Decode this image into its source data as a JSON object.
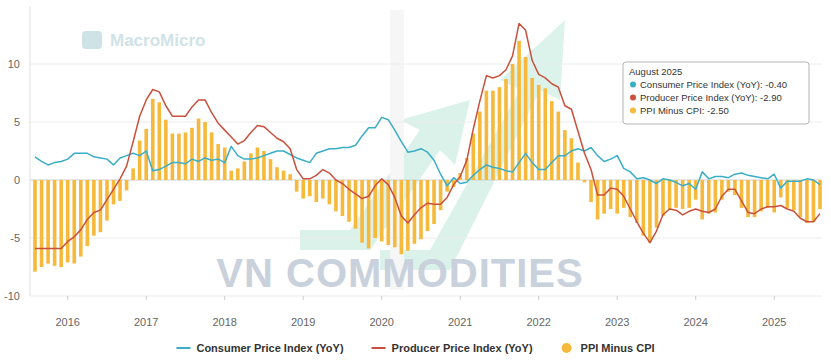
{
  "chart_data": {
    "type": "line",
    "categories": [
      null,
      null,
      null,
      null,
      null,
      "2016",
      null,
      null,
      null,
      null,
      null,
      null,
      null,
      null,
      null,
      null,
      null,
      "2017",
      null,
      null,
      null,
      null,
      null,
      null,
      null,
      null,
      null,
      null,
      null,
      "2018",
      null,
      null,
      null,
      null,
      null,
      null,
      null,
      null,
      null,
      null,
      null,
      "2019",
      null,
      null,
      null,
      null,
      null,
      null,
      null,
      null,
      null,
      null,
      null,
      "2020",
      null,
      null,
      null,
      null,
      null,
      null,
      null,
      null,
      null,
      null,
      null,
      "2021",
      null,
      null,
      null,
      null,
      null,
      null,
      null,
      null,
      null,
      null,
      null,
      "2022",
      null,
      null,
      null,
      null,
      null,
      null,
      null,
      null,
      null,
      null,
      null,
      "2023",
      null,
      null,
      null,
      null,
      null,
      null,
      null,
      null,
      null,
      null,
      null,
      "2024",
      null,
      null,
      null,
      null,
      null,
      null,
      null,
      null,
      null,
      null,
      null,
      "2025",
      null,
      null,
      null,
      null,
      null,
      null,
      null
    ],
    "series": [
      {
        "name": "Consumer Price Index (YoY)",
        "type": "line",
        "color": "#3aaec6",
        "values": [
          2.0,
          1.6,
          1.3,
          1.5,
          1.6,
          1.8,
          2.3,
          2.3,
          2.3,
          2.0,
          1.9,
          1.8,
          1.3,
          1.9,
          2.1,
          2.3,
          2.1,
          2.5,
          0.8,
          0.9,
          1.2,
          1.5,
          1.5,
          1.4,
          1.8,
          1.6,
          1.9,
          1.7,
          1.8,
          1.5,
          2.9,
          2.1,
          1.8,
          1.8,
          1.9,
          2.1,
          2.3,
          2.5,
          2.5,
          2.2,
          1.9,
          1.7,
          1.5,
          2.3,
          2.5,
          2.7,
          2.7,
          2.8,
          2.8,
          3.0,
          3.8,
          4.5,
          4.5,
          5.4,
          5.2,
          4.3,
          3.3,
          2.4,
          2.5,
          2.7,
          2.4,
          1.7,
          0.5,
          -0.5,
          0.2,
          -0.3,
          -0.2,
          0.4,
          0.9,
          1.3,
          1.1,
          1.0,
          0.8,
          0.7,
          1.5,
          2.3,
          1.5,
          0.9,
          0.9,
          1.5,
          2.1,
          2.1,
          2.5,
          2.7,
          2.5,
          2.8,
          2.1,
          1.6,
          1.8,
          2.1,
          1.0,
          0.7,
          0.1,
          0.2,
          0.0,
          -0.3,
          0.1,
          0.0,
          -0.2,
          -0.5,
          -0.3,
          -0.8,
          0.7,
          0.1,
          0.3,
          0.3,
          0.2,
          0.5,
          0.6,
          0.4,
          0.3,
          0.2,
          0.1,
          0.5,
          -0.7,
          -0.1,
          -0.1,
          -0.1,
          0.1,
          0.0,
          -0.4
        ]
      },
      {
        "name": "Producer Price Index (YoY)",
        "type": "line",
        "color": "#c9503d",
        "values": [
          -5.9,
          -5.9,
          -5.9,
          -5.9,
          -5.9,
          -5.3,
          -4.9,
          -4.3,
          -3.4,
          -2.8,
          -2.6,
          -1.7,
          -0.8,
          0.1,
          1.2,
          3.3,
          5.5,
          6.9,
          7.8,
          7.6,
          6.4,
          5.5,
          5.5,
          5.5,
          6.3,
          6.9,
          6.9,
          5.8,
          4.9,
          4.3,
          3.7,
          3.1,
          3.4,
          4.1,
          4.7,
          4.6,
          4.1,
          3.6,
          3.3,
          2.7,
          0.9,
          0.1,
          0.1,
          0.4,
          0.9,
          0.6,
          0.0,
          -0.3,
          -0.8,
          -1.2,
          -1.6,
          -1.4,
          -0.5,
          0.1,
          -0.4,
          -1.5,
          -3.1,
          -3.7,
          -3.0,
          -2.4,
          -2.0,
          -2.1,
          -2.1,
          -1.5,
          -0.4,
          0.3,
          1.7,
          4.4,
          6.8,
          9.0,
          8.8,
          9.0,
          9.5,
          10.7,
          13.5,
          12.9,
          10.3,
          9.1,
          8.8,
          8.3,
          8.0,
          6.4,
          6.1,
          4.2,
          2.3,
          0.9,
          -1.3,
          -1.3,
          -0.7,
          -0.8,
          -1.4,
          -2.5,
          -3.6,
          -4.6,
          -5.4,
          -4.4,
          -3.0,
          -2.5,
          -2.6,
          -3.0,
          -2.7,
          -2.5,
          -2.7,
          -2.8,
          -2.5,
          -1.4,
          -0.8,
          -0.8,
          -1.8,
          -2.8,
          -2.9,
          -2.5,
          -2.3,
          -2.3,
          -2.2,
          -2.5,
          -2.7,
          -3.3,
          -3.6,
          -3.6,
          -2.9
        ]
      },
      {
        "name": "PPI Minus CPI",
        "type": "bar",
        "color": "#f6b93b",
        "marker": "circle",
        "values": [
          -7.9,
          -7.5,
          -7.2,
          -7.4,
          -7.5,
          -7.1,
          -7.2,
          -6.6,
          -5.7,
          -4.8,
          -4.5,
          -3.5,
          -2.1,
          -1.8,
          -0.9,
          1.0,
          3.4,
          4.4,
          7.0,
          6.7,
          5.2,
          4.0,
          4.0,
          4.1,
          4.5,
          5.3,
          5.0,
          4.1,
          3.1,
          2.8,
          0.8,
          1.0,
          1.6,
          2.3,
          2.8,
          2.5,
          1.8,
          1.1,
          0.8,
          0.5,
          -1.0,
          -1.6,
          -1.4,
          -1.9,
          -1.6,
          -2.1,
          -2.7,
          -3.1,
          -3.6,
          -4.2,
          -5.4,
          -5.9,
          -5.0,
          -5.3,
          -5.6,
          -5.8,
          -6.4,
          -6.1,
          -5.5,
          -5.1,
          -4.4,
          -3.8,
          -2.6,
          -1.0,
          -0.6,
          0.6,
          1.9,
          4.0,
          5.9,
          7.7,
          7.7,
          8.0,
          8.7,
          10.0,
          12.0,
          10.6,
          8.8,
          8.2,
          7.9,
          6.8,
          5.9,
          4.3,
          3.6,
          1.5,
          -0.2,
          -1.9,
          -3.4,
          -2.9,
          -2.5,
          -2.9,
          -2.4,
          -3.2,
          -3.7,
          -4.8,
          -5.4,
          -4.1,
          -3.1,
          -2.5,
          -2.4,
          -2.5,
          -2.4,
          -1.7,
          -3.4,
          -2.9,
          -2.8,
          -1.7,
          -1.0,
          -1.3,
          -2.4,
          -3.2,
          -3.2,
          -2.7,
          -2.4,
          -2.8,
          -1.5,
          -2.4,
          -2.6,
          -3.2,
          -3.7,
          -3.6,
          -2.5
        ]
      }
    ],
    "ylim": [
      -10,
      15
    ],
    "yticks": [
      -10,
      -5,
      0,
      5,
      10
    ],
    "grid": true,
    "legend": "bottom",
    "tooltip": {
      "title": "August 2025",
      "entries": [
        {
          "label": "Consumer Price Index (YoY): -0.40",
          "value": -0.4
        },
        {
          "label": "Producer Price Index (YoY): -2.90",
          "value": -2.9
        },
        {
          "label": "PPI Minus CPI: -2.50",
          "value": -2.5
        }
      ]
    },
    "annotations": [
      "MacroMicro",
      "VN COMMODITIES"
    ]
  }
}
